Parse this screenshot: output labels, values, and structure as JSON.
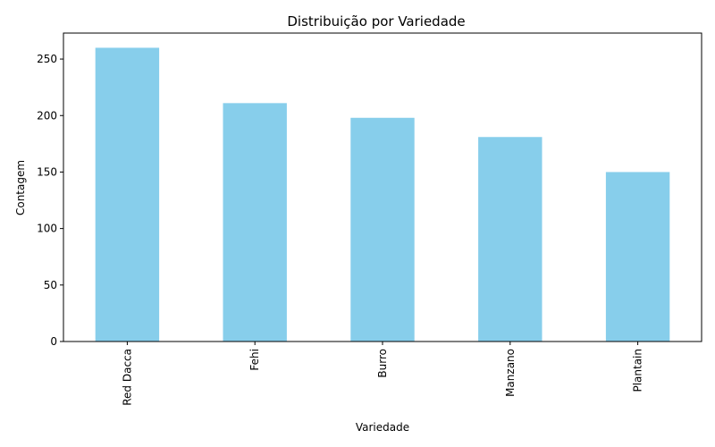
{
  "chart_data": {
    "type": "bar",
    "title": "Distribuição por Variedade",
    "xlabel": "Variedade",
    "ylabel": "Contagem",
    "categories": [
      "Red Dacca",
      "Fehi",
      "Burro",
      "Manzano",
      "Plantain"
    ],
    "values": [
      260,
      211,
      198,
      181,
      150
    ],
    "ylim": [
      0,
      273
    ],
    "yticks": [
      0,
      50,
      100,
      150,
      200,
      250
    ],
    "grid": false,
    "legend": "none",
    "bar_color": "#87CEEB"
  }
}
